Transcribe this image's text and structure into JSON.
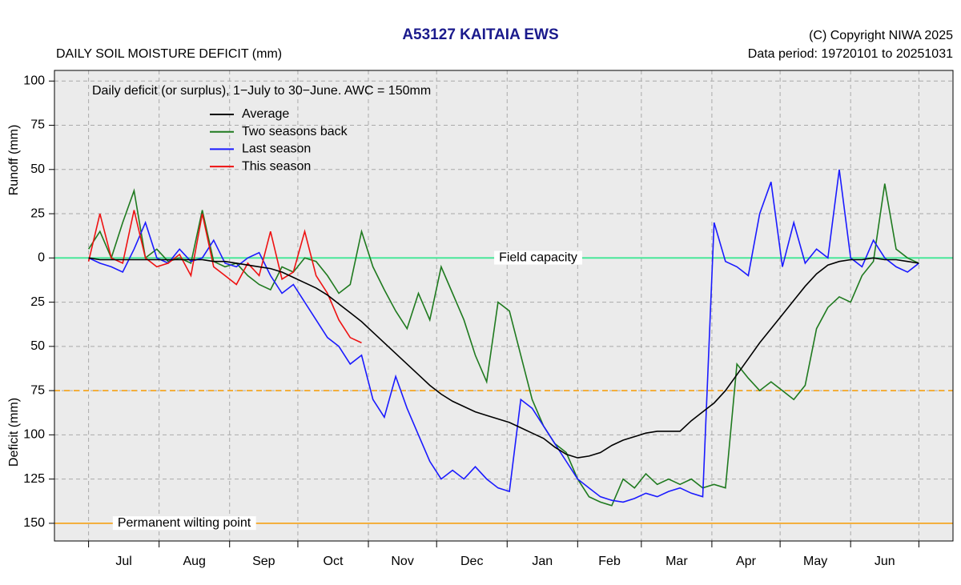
{
  "chart_data": {
    "type": "line",
    "title": "A53127  KAITAIA EWS",
    "subtitle": "DAILY SOIL MOISTURE DEFICIT (mm)",
    "copyright": "(C) Copyright NIWA  2025",
    "data_period": "Data period:  19720101  to  20251031",
    "annotation": "Daily deficit (or surplus), 1−July to 30−June.  AWC = 150mm",
    "ylabel_top": "Runoff (mm)",
    "ylabel_bottom": "Deficit (mm)",
    "months": [
      "Jul",
      "Aug",
      "Sep",
      "Oct",
      "Nov",
      "Dec",
      "Jan",
      "Feb",
      "Mar",
      "Apr",
      "May",
      "Jun"
    ],
    "xlim": [
      -15,
      380
    ],
    "xticks": [
      0,
      31,
      62,
      92,
      123,
      153,
      184,
      215,
      243,
      274,
      304,
      335,
      365
    ],
    "ylim": [
      -160,
      106
    ],
    "yticks": [
      100,
      75,
      50,
      25,
      0,
      {
        "value": -25,
        "label": "25"
      },
      {
        "value": -50,
        "label": "50"
      },
      {
        "value": -75,
        "label": "75"
      },
      {
        "value": -100,
        "label": "100"
      },
      {
        "value": -125,
        "label": "125"
      },
      {
        "value": -150,
        "label": "150"
      }
    ],
    "grid": true,
    "reference_lines": [
      {
        "value": 0,
        "label": "Field capacity",
        "color": "#3ee694",
        "dashed": false
      },
      {
        "value": -75,
        "color": "#f5a623",
        "dashed": true
      },
      {
        "value": -150,
        "label": "Permanent wilting point",
        "color": "#f5a623",
        "dashed": false
      }
    ],
    "x": [
      0,
      5,
      10,
      15,
      20,
      25,
      30,
      35,
      40,
      45,
      50,
      55,
      60,
      65,
      70,
      75,
      80,
      85,
      90,
      95,
      100,
      105,
      110,
      115,
      120,
      125,
      130,
      135,
      140,
      145,
      150,
      155,
      160,
      165,
      170,
      175,
      180,
      185,
      190,
      195,
      200,
      205,
      210,
      215,
      220,
      225,
      230,
      235,
      240,
      245,
      250,
      255,
      260,
      265,
      270,
      275,
      280,
      285,
      290,
      295,
      300,
      305,
      310,
      315,
      320,
      325,
      330,
      335,
      340,
      345,
      350,
      355,
      360,
      365
    ],
    "series": [
      {
        "name": "Average",
        "color": "#000000",
        "values": [
          0,
          -1,
          -1,
          -1,
          -1,
          -1,
          -1,
          -1,
          -1,
          -1,
          -1,
          -2,
          -2,
          -3,
          -4,
          -5,
          -6,
          -8,
          -11,
          -14,
          -17,
          -21,
          -26,
          -31,
          -36,
          -42,
          -48,
          -54,
          -60,
          -66,
          -72,
          -77,
          -81,
          -84,
          -87,
          -89,
          -91,
          -93,
          -96,
          -99,
          -102,
          -107,
          -111,
          -113,
          -112,
          -110,
          -106,
          -103,
          -101,
          -99,
          -98,
          -98,
          -98,
          -92,
          -87,
          -82,
          -75,
          -66,
          -57,
          -48,
          -40,
          -32,
          -24,
          -16,
          -9,
          -4,
          -2,
          -1,
          -1,
          0,
          -1,
          -1,
          -2,
          -3
        ]
      },
      {
        "name": "Two seasons back",
        "color": "#1f7a1f",
        "values": [
          5,
          15,
          0,
          20,
          38,
          0,
          5,
          -2,
          0,
          -3,
          27,
          -2,
          -5,
          -3,
          -10,
          -15,
          -18,
          -5,
          -8,
          0,
          -2,
          -10,
          -20,
          -15,
          15,
          -5,
          -18,
          -30,
          -40,
          -20,
          -35,
          -5,
          -20,
          -35,
          -55,
          -70,
          -25,
          -30,
          -55,
          -80,
          -95,
          -105,
          -110,
          -125,
          -135,
          -138,
          -140,
          -125,
          -130,
          -122,
          -128,
          -125,
          -128,
          -125,
          -130,
          -128,
          -130,
          -60,
          -68,
          -75,
          -70,
          -75,
          -80,
          -72,
          -40,
          -28,
          -22,
          -25,
          -10,
          -2,
          42,
          5,
          0,
          -3
        ]
      },
      {
        "name": "Last season",
        "color": "#1a1aff",
        "values": [
          0,
          -3,
          -5,
          -8,
          5,
          20,
          0,
          -3,
          5,
          -2,
          0,
          10,
          -3,
          -5,
          0,
          3,
          -10,
          -20,
          -15,
          -25,
          -35,
          -45,
          -50,
          -60,
          -55,
          -80,
          -90,
          -67,
          -85,
          -100,
          -115,
          -125,
          -120,
          -125,
          -118,
          -125,
          -130,
          -132,
          -80,
          -85,
          -95,
          -105,
          -115,
          -125,
          -130,
          -135,
          -137,
          -138,
          -136,
          -133,
          -135,
          -132,
          -130,
          -133,
          -135,
          20,
          -2,
          -5,
          -10,
          25,
          43,
          -5,
          20,
          -3,
          5,
          0,
          50,
          0,
          -5,
          10,
          0,
          -5,
          -8,
          -3
        ]
      },
      {
        "name": "This season",
        "color": "#ee1111",
        "values": [
          -2,
          25,
          0,
          -3,
          27,
          0,
          -5,
          -3,
          2,
          -10,
          25,
          -5,
          -10,
          -15,
          -3,
          -10,
          15,
          -12,
          -8,
          15,
          -10,
          -20,
          -35,
          -45,
          -48,
          null,
          null,
          null,
          null,
          null,
          null,
          null,
          null,
          null,
          null,
          null,
          null,
          null,
          null,
          null,
          null,
          null,
          null,
          null,
          null,
          null,
          null,
          null,
          null,
          null,
          null,
          null,
          null,
          null,
          null,
          null,
          null,
          null,
          null,
          null,
          null,
          null,
          null,
          null,
          null,
          null,
          null,
          null,
          null,
          null,
          null,
          null,
          null,
          null
        ]
      }
    ]
  }
}
